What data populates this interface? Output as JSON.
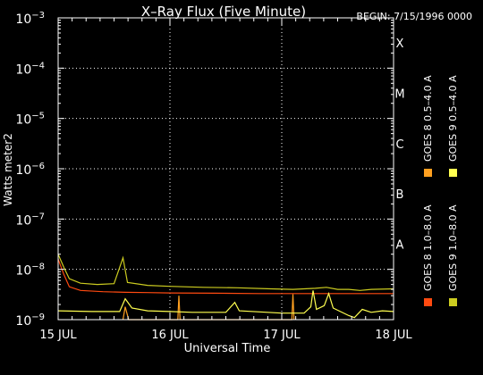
{
  "chart_data": {
    "type": "line",
    "title": "X–Ray Flux (Five Minute)",
    "begin_label": "BEGIN: 7/15/1996 0000",
    "xlabel": "Universal Time",
    "ylabel": "Watts meter2",
    "x_tick_labels": [
      "15 JUL",
      "16 JUL",
      "17 JUL",
      "18 JUL"
    ],
    "x_range_days": [
      0,
      3
    ],
    "y_scale": "log",
    "y_range": [
      1e-09,
      0.001
    ],
    "y_tick_labels": [
      {
        "base": "10",
        "exp": "−9",
        "value": 1e-09
      },
      {
        "base": "10",
        "exp": "−8",
        "value": 1e-08
      },
      {
        "base": "10",
        "exp": "−7",
        "value": 1e-07
      },
      {
        "base": "10",
        "exp": "−6",
        "value": 1e-06
      },
      {
        "base": "10",
        "exp": "−5",
        "value": 1e-05
      },
      {
        "base": "10",
        "exp": "−4",
        "value": 0.0001
      },
      {
        "base": "10",
        "exp": "−3",
        "value": 0.001
      }
    ],
    "flare_classes": [
      {
        "label": "A",
        "value": 1e-08
      },
      {
        "label": "B",
        "value": 1e-07
      },
      {
        "label": "C",
        "value": 1e-06
      },
      {
        "label": "M",
        "value": 1e-05
      },
      {
        "label": "X",
        "value": 0.0001
      }
    ],
    "grid": true,
    "legend_position": "right, vertical",
    "series": [
      {
        "name": "GOES 8 1.0–8.0 A",
        "color": "#ff4a10",
        "points": [
          [
            0,
            1.6e-08
          ],
          [
            0.05,
            8e-09
          ],
          [
            0.1,
            4.5e-09
          ],
          [
            0.2,
            3.8e-09
          ],
          [
            0.4,
            3.6e-09
          ],
          [
            0.6,
            3.5e-09
          ],
          [
            0.8,
            3.45e-09
          ],
          [
            1.0,
            3.4e-09
          ],
          [
            1.4,
            3.35e-09
          ],
          [
            1.8,
            3.3e-09
          ],
          [
            2.2,
            3.3e-09
          ],
          [
            2.6,
            3.3e-09
          ],
          [
            3.0,
            3.3e-09
          ]
        ]
      },
      {
        "name": "GOES 8 0.5–4.0 A",
        "color": "#ffa020",
        "points": [
          [
            0.58,
            1e-09
          ],
          [
            0.6,
            1.8e-09
          ],
          [
            0.63,
            1e-09
          ],
          [
            1.07,
            1e-09
          ],
          [
            1.08,
            3e-09
          ],
          [
            1.09,
            1e-09
          ],
          [
            2.09,
            1e-09
          ],
          [
            2.1,
            3.2e-09
          ],
          [
            2.11,
            1e-09
          ]
        ]
      },
      {
        "name": "GOES 9 0.5–4.0 A",
        "color": "#ffff50",
        "points": [
          [
            0,
            1.5e-09
          ],
          [
            0.3,
            1.45e-09
          ],
          [
            0.55,
            1.45e-09
          ],
          [
            0.6,
            2.6e-09
          ],
          [
            0.66,
            1.7e-09
          ],
          [
            0.8,
            1.5e-09
          ],
          [
            1.0,
            1.45e-09
          ],
          [
            1.2,
            1.4e-09
          ],
          [
            1.5,
            1.4e-09
          ],
          [
            1.58,
            2.2e-09
          ],
          [
            1.62,
            1.5e-09
          ],
          [
            2.0,
            1.35e-09
          ],
          [
            2.2,
            1.35e-09
          ],
          [
            2.26,
            1.8e-09
          ],
          [
            2.28,
            3.8e-09
          ],
          [
            2.31,
            1.6e-09
          ],
          [
            2.38,
            1.9e-09
          ],
          [
            2.42,
            3.3e-09
          ],
          [
            2.46,
            1.7e-09
          ],
          [
            2.6,
            1.2e-09
          ],
          [
            2.65,
            1.1e-09
          ],
          [
            2.72,
            1.6e-09
          ],
          [
            2.8,
            1.4e-09
          ],
          [
            2.9,
            1.5e-09
          ],
          [
            3.0,
            1.45e-09
          ]
        ]
      },
      {
        "name": "GOES 9 1.0–8.0 A",
        "color": "#cccc20",
        "points": [
          [
            0,
            2e-08
          ],
          [
            0.05,
            1.1e-08
          ],
          [
            0.1,
            6.5e-09
          ],
          [
            0.2,
            5.3e-09
          ],
          [
            0.35,
            5e-09
          ],
          [
            0.5,
            5.2e-09
          ],
          [
            0.58,
            1.7e-08
          ],
          [
            0.62,
            5.5e-09
          ],
          [
            0.8,
            4.8e-09
          ],
          [
            1.0,
            4.6e-09
          ],
          [
            1.3,
            4.4e-09
          ],
          [
            1.6,
            4.3e-09
          ],
          [
            1.9,
            4.1e-09
          ],
          [
            2.1,
            4e-09
          ],
          [
            2.3,
            4.2e-09
          ],
          [
            2.4,
            4.4e-09
          ],
          [
            2.5,
            4e-09
          ],
          [
            2.6,
            4e-09
          ],
          [
            2.7,
            3.8e-09
          ],
          [
            2.8,
            4e-09
          ],
          [
            3.0,
            4.1e-09
          ]
        ]
      }
    ]
  }
}
